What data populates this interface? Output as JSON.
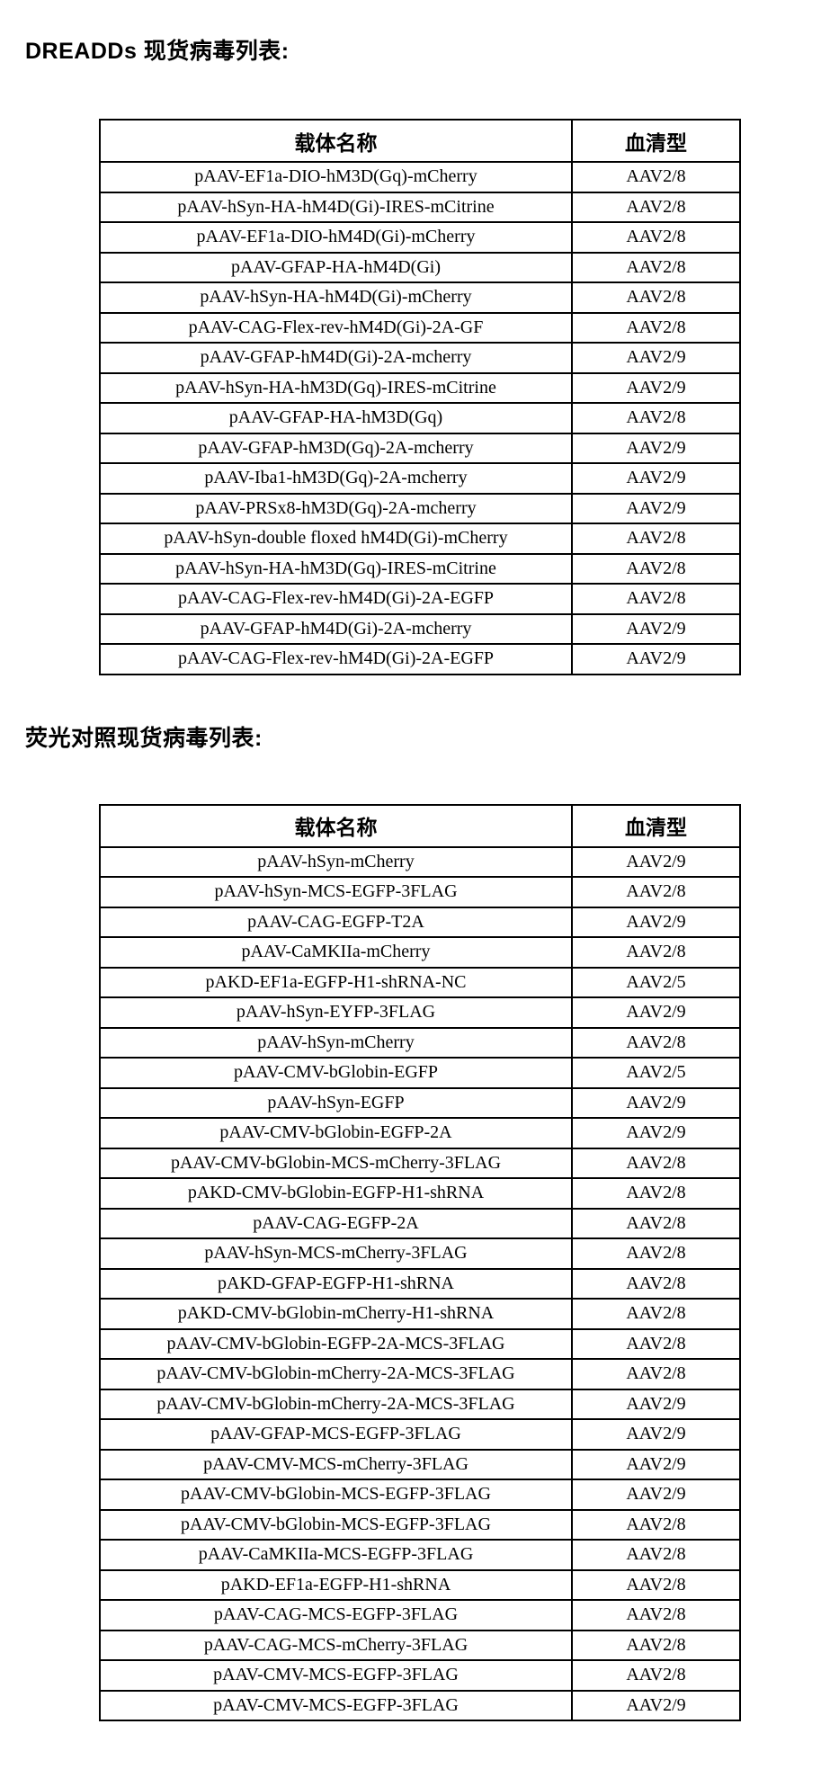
{
  "colors": {
    "background": "#ffffff",
    "text": "#000000",
    "table_border": "#000000"
  },
  "document": {
    "sections": [
      {
        "title": "DREADDs 现货病毒列表:",
        "table": {
          "headers": [
            "载体名称",
            "血清型"
          ],
          "rows": [
            [
              "pAAV-EF1a-DIO-hM3D(Gq)-mCherry",
              "AAV2/8"
            ],
            [
              "pAAV-hSyn-HA-hM4D(Gi)-IRES-mCitrine",
              "AAV2/8"
            ],
            [
              "pAAV-EF1a-DIO-hM4D(Gi)-mCherry",
              "AAV2/8"
            ],
            [
              "pAAV-GFAP-HA-hM4D(Gi)",
              "AAV2/8"
            ],
            [
              "pAAV-hSyn-HA-hM4D(Gi)-mCherry",
              "AAV2/8"
            ],
            [
              "pAAV-CAG-Flex-rev-hM4D(Gi)-2A-GF",
              "AAV2/8"
            ],
            [
              "pAAV-GFAP-hM4D(Gi)-2A-mcherry",
              "AAV2/9"
            ],
            [
              "pAAV-hSyn-HA-hM3D(Gq)-IRES-mCitrine",
              "AAV2/9"
            ],
            [
              "pAAV-GFAP-HA-hM3D(Gq)",
              "AAV2/8"
            ],
            [
              "pAAV-GFAP-hM3D(Gq)-2A-mcherry",
              "AAV2/9"
            ],
            [
              "pAAV-Iba1-hM3D(Gq)-2A-mcherry",
              "AAV2/9"
            ],
            [
              "pAAV-PRSx8-hM3D(Gq)-2A-mcherry",
              "AAV2/9"
            ],
            [
              "pAAV-hSyn-double floxed hM4D(Gi)-mCherry",
              "AAV2/8"
            ],
            [
              "pAAV-hSyn-HA-hM3D(Gq)-IRES-mCitrine",
              "AAV2/8"
            ],
            [
              "pAAV-CAG-Flex-rev-hM4D(Gi)-2A-EGFP",
              "AAV2/8"
            ],
            [
              "pAAV-GFAP-hM4D(Gi)-2A-mcherry",
              "AAV2/9"
            ],
            [
              "pAAV-CAG-Flex-rev-hM4D(Gi)-2A-EGFP",
              "AAV2/9"
            ]
          ]
        }
      },
      {
        "title": "荧光对照现货病毒列表:",
        "table": {
          "headers": [
            "载体名称",
            "血清型"
          ],
          "rows": [
            [
              "pAAV-hSyn-mCherry",
              "AAV2/9"
            ],
            [
              "pAAV-hSyn-MCS-EGFP-3FLAG",
              "AAV2/8"
            ],
            [
              "pAAV-CAG-EGFP-T2A",
              "AAV2/9"
            ],
            [
              "pAAV-CaMKIIa-mCherry",
              "AAV2/8"
            ],
            [
              "pAKD-EF1a-EGFP-H1-shRNA-NC",
              "AAV2/5"
            ],
            [
              "pAAV-hSyn-EYFP-3FLAG",
              "AAV2/9"
            ],
            [
              "pAAV-hSyn-mCherry",
              "AAV2/8"
            ],
            [
              "pAAV-CMV-bGlobin-EGFP",
              "AAV2/5"
            ],
            [
              "pAAV-hSyn-EGFP",
              "AAV2/9"
            ],
            [
              "pAAV-CMV-bGlobin-EGFP-2A",
              "AAV2/9"
            ],
            [
              "pAAV-CMV-bGlobin-MCS-mCherry-3FLAG",
              "AAV2/8"
            ],
            [
              "pAKD-CMV-bGlobin-EGFP-H1-shRNA",
              "AAV2/8"
            ],
            [
              "pAAV-CAG-EGFP-2A",
              "AAV2/8"
            ],
            [
              "pAAV-hSyn-MCS-mCherry-3FLAG",
              "AAV2/8"
            ],
            [
              "pAKD-GFAP-EGFP-H1-shRNA",
              "AAV2/8"
            ],
            [
              "pAKD-CMV-bGlobin-mCherry-H1-shRNA",
              "AAV2/8"
            ],
            [
              "pAAV-CMV-bGlobin-EGFP-2A-MCS-3FLAG",
              "AAV2/8"
            ],
            [
              "pAAV-CMV-bGlobin-mCherry-2A-MCS-3FLAG",
              "AAV2/8"
            ],
            [
              "pAAV-CMV-bGlobin-mCherry-2A-MCS-3FLAG",
              "AAV2/9"
            ],
            [
              "pAAV-GFAP-MCS-EGFP-3FLAG",
              "AAV2/9"
            ],
            [
              "pAAV-CMV-MCS-mCherry-3FLAG",
              "AAV2/9"
            ],
            [
              "pAAV-CMV-bGlobin-MCS-EGFP-3FLAG",
              "AAV2/9"
            ],
            [
              "pAAV-CMV-bGlobin-MCS-EGFP-3FLAG",
              "AAV2/8"
            ],
            [
              "pAAV-CaMKIIa-MCS-EGFP-3FLAG",
              "AAV2/8"
            ],
            [
              "pAKD-EF1a-EGFP-H1-shRNA",
              "AAV2/8"
            ],
            [
              "pAAV-CAG-MCS-EGFP-3FLAG",
              "AAV2/8"
            ],
            [
              "pAAV-CAG-MCS-mCherry-3FLAG",
              "AAV2/8"
            ],
            [
              "pAAV-CMV-MCS-EGFP-3FLAG",
              "AAV2/8"
            ],
            [
              "pAAV-CMV-MCS-EGFP-3FLAG",
              "AAV2/9"
            ]
          ]
        }
      }
    ]
  }
}
